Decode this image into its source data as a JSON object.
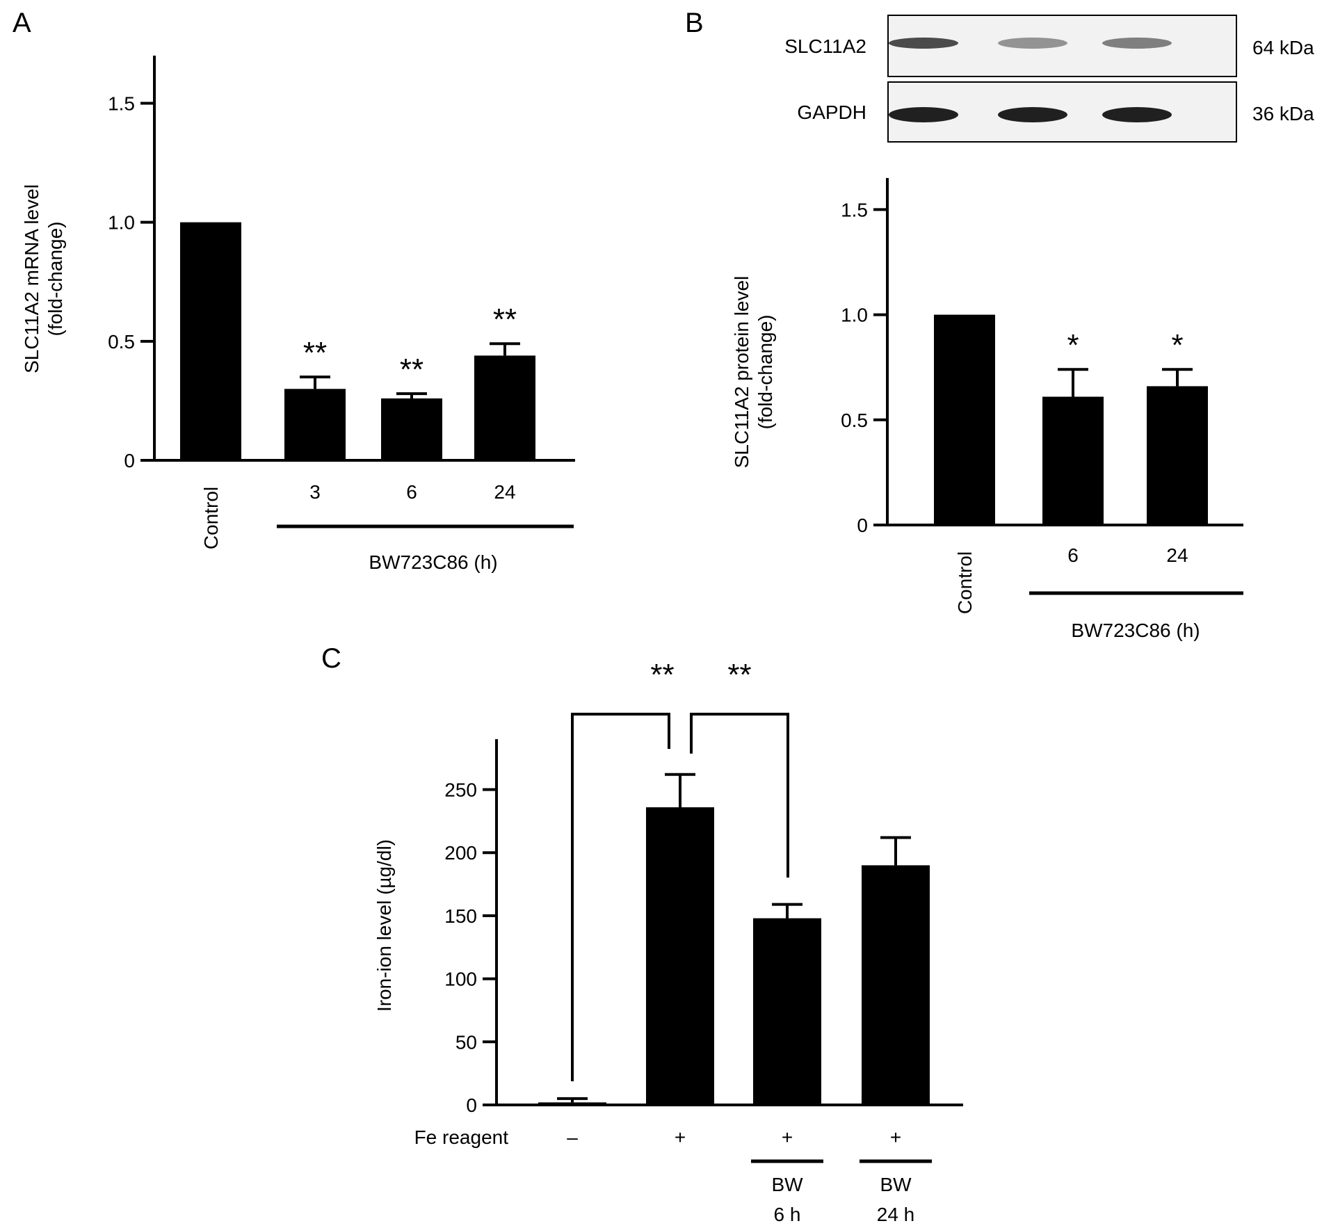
{
  "colors": {
    "bar": "#000000",
    "background": "#ffffff",
    "blot_bg": "#f2f2f2",
    "band": "#202020"
  },
  "chart_data": [
    {
      "panel": "A",
      "type": "bar",
      "ylabel": [
        "SLC11A2 mRNA level",
        "(fold-change)"
      ],
      "ylim": [
        0,
        1.7
      ],
      "yticks": [
        "0",
        "0.5",
        "1.0",
        "1.5"
      ],
      "ytick_values": [
        0,
        0.5,
        1.0,
        1.5
      ],
      "categories": [
        "Control",
        "3",
        "6",
        "24"
      ],
      "values": [
        1.0,
        0.3,
        0.26,
        0.44
      ],
      "errors": [
        0,
        0.05,
        0.02,
        0.05
      ],
      "significance": [
        "",
        "**",
        "**",
        "**"
      ],
      "group_label": "BW723C86 (h)",
      "grid": false
    },
    {
      "panel": "B",
      "type": "bar",
      "ylabel": [
        "SLC11A2 protein level",
        "(fold-change)"
      ],
      "ylim": [
        0,
        1.65
      ],
      "yticks": [
        "0",
        "0.5",
        "1.0",
        "1.5"
      ],
      "ytick_values": [
        0,
        0.5,
        1.0,
        1.5
      ],
      "categories": [
        "Control",
        "6",
        "24"
      ],
      "values": [
        1.0,
        0.61,
        0.66
      ],
      "errors": [
        0,
        0.13,
        0.08
      ],
      "significance": [
        "",
        "*",
        "*"
      ],
      "group_label": "BW723C86 (h)",
      "grid": false,
      "blot": {
        "rows": [
          {
            "name": "SLC11A2",
            "size": "64 kDa",
            "intensities": [
              0.8,
              0.45,
              0.55
            ]
          },
          {
            "name": "GAPDH",
            "size": "36 kDa",
            "intensities": [
              1.0,
              1.0,
              1.0
            ]
          }
        ]
      }
    },
    {
      "panel": "C",
      "type": "bar",
      "ylabel": [
        "Iron-ion level (µg/dl)"
      ],
      "ylim": [
        0,
        290
      ],
      "yticks": [
        "0",
        "50",
        "100",
        "150",
        "200",
        "250"
      ],
      "ytick_values": [
        0,
        50,
        100,
        150,
        200,
        250
      ],
      "categories": [
        "–",
        "+",
        "+",
        "+"
      ],
      "row_label": "Fe reagent",
      "values": [
        2,
        236,
        148,
        190
      ],
      "errors": [
        3,
        26,
        11,
        22
      ],
      "treatments": [
        null,
        null,
        [
          "BW",
          "6 h"
        ],
        [
          "BW",
          "24 h"
        ]
      ],
      "brackets": [
        {
          "from": 0,
          "to": 1,
          "label": "**"
        },
        {
          "from": 1,
          "to": 2,
          "label": "**"
        }
      ],
      "grid": false
    }
  ]
}
